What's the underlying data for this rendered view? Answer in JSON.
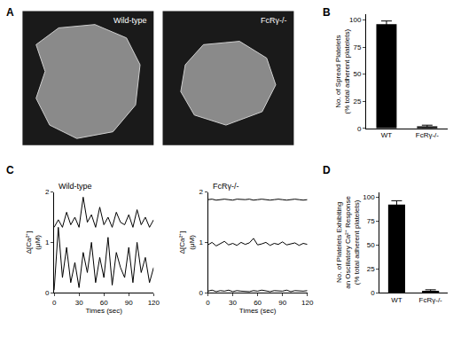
{
  "images": {
    "panel": "A",
    "labels": [
      "Wild-type",
      "FcRγ-/-"
    ]
  },
  "chart_data": [
    {
      "panel": "B",
      "type": "bar",
      "categories": [
        "WT",
        "FcRγ-/-"
      ],
      "values": [
        96,
        2
      ],
      "errors": [
        3,
        1
      ],
      "color": "#000000",
      "y_label": [
        "No. of Spread Platelets",
        "(% total adherent platelets)"
      ],
      "ylim": [
        0,
        105
      ],
      "yticks": [
        0,
        25,
        50,
        75,
        100
      ],
      "grid": false
    },
    {
      "panel": "C",
      "type": "line",
      "title": "Wild-type",
      "x": [
        0,
        5,
        10,
        15,
        20,
        25,
        30,
        35,
        40,
        45,
        50,
        55,
        60,
        65,
        70,
        75,
        80,
        85,
        90,
        95,
        100,
        105,
        110,
        115,
        120
      ],
      "series": [
        {
          "color": "#000000",
          "values": [
            0.05,
            1.3,
            0.3,
            0.9,
            0.2,
            0.6,
            0.1,
            0.8,
            0.4,
            1.0,
            0.2,
            0.7,
            0.3,
            1.1,
            0.15,
            0.8,
            0.5,
            0.3,
            0.9,
            0.2,
            1.0,
            0.4,
            0.7,
            0.2,
            0.5
          ]
        },
        {
          "color": "#000000",
          "values": [
            1.3,
            1.45,
            1.3,
            1.6,
            1.35,
            1.5,
            1.3,
            1.9,
            1.4,
            1.55,
            1.3,
            1.7,
            1.35,
            1.5,
            1.3,
            1.6,
            1.4,
            1.35,
            1.55,
            1.3,
            1.65,
            1.35,
            1.5,
            1.3,
            1.45
          ]
        }
      ],
      "x_label": "Times (sec)",
      "y_label": [
        "Δ[Ca²⁺]",
        "(μM)"
      ],
      "xlim": [
        0,
        120
      ],
      "xticks": [
        0,
        30,
        60,
        90,
        120
      ],
      "ylim": [
        0,
        2
      ],
      "yticks": [
        0,
        1,
        2
      ],
      "grid": false
    },
    {
      "panel": "",
      "type": "line",
      "title": "FcRγ-/-",
      "x": [
        0,
        5,
        10,
        15,
        20,
        25,
        30,
        35,
        40,
        45,
        50,
        55,
        60,
        65,
        70,
        75,
        80,
        85,
        90,
        95,
        100,
        105,
        110,
        115,
        120
      ],
      "series": [
        {
          "color": "#000000",
          "values": [
            0.03,
            0.05,
            0.02,
            0.04,
            0.03,
            0.05,
            0.02,
            0.04,
            0.03,
            0.03,
            0.02,
            0.04,
            0.03,
            0.05,
            0.03,
            0.02,
            0.04,
            0.03,
            0.03,
            0.05,
            0.02,
            0.04,
            0.03,
            0.03,
            0.04
          ]
        },
        {
          "color": "#000000",
          "values": [
            0.95,
            1.0,
            0.93,
            0.97,
            1.02,
            0.95,
            0.98,
            0.94,
            1.0,
            0.96,
            0.99,
            1.08,
            0.95,
            0.97,
            1.0,
            0.94,
            0.98,
            0.96,
            1.01,
            0.95,
            0.97,
            0.99,
            0.94,
            0.98,
            0.96
          ]
        },
        {
          "color": "#000000",
          "values": [
            1.85,
            1.86,
            1.84,
            1.85,
            1.86,
            1.85,
            1.84,
            1.86,
            1.85,
            1.85,
            1.86,
            1.84,
            1.85,
            1.86,
            1.85,
            1.84,
            1.85,
            1.86,
            1.85,
            1.84,
            1.85,
            1.86,
            1.85,
            1.84,
            1.85
          ]
        }
      ],
      "x_label": "Times (sec)",
      "y_label": [
        "Δ[Ca²⁺]",
        "(μM)"
      ],
      "xlim": [
        0,
        120
      ],
      "xticks": [
        0,
        30,
        60,
        90,
        120
      ],
      "ylim": [
        0,
        2
      ],
      "yticks": [
        0,
        1,
        2
      ],
      "grid": false
    },
    {
      "panel": "D",
      "type": "bar",
      "categories": [
        "WT",
        "FcRγ-/-"
      ],
      "values": [
        92,
        2
      ],
      "errors": [
        4,
        1
      ],
      "color": "#000000",
      "y_label": [
        "No. of Platelets Exhibiting",
        "an Oscillatory Ca²⁺ Response",
        "(% total adherent platelets)"
      ],
      "ylim": [
        0,
        105
      ],
      "yticks": [
        0,
        25,
        50,
        75,
        100
      ],
      "grid": false
    }
  ]
}
